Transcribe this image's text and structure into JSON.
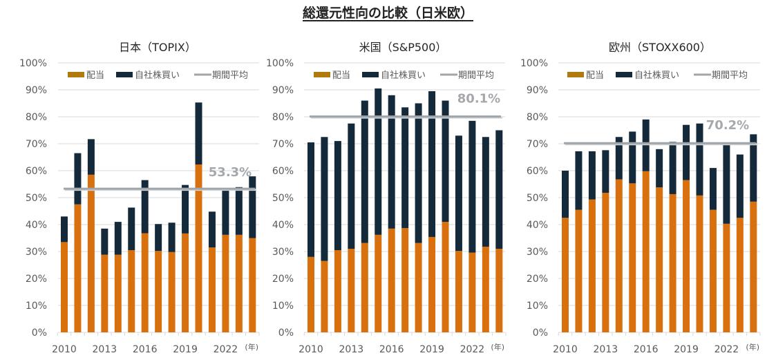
{
  "title": "総還元性向の比較（日米欧）",
  "legend": {
    "dividend": "配当",
    "buyback": "自社株買い",
    "average": "期間平均"
  },
  "colors": {
    "dividend": "#D9700E",
    "buyback": "#14293A",
    "average": "#A0A5AA",
    "grid": "#D9D9D9"
  },
  "chart_data": [
    {
      "type": "bar",
      "stacked": true,
      "title": "日本（TOPIX）",
      "xlabel": "",
      "ylabel": "",
      "x_unit": "(年)",
      "categories": [
        "2010",
        "2011",
        "2012",
        "2013",
        "2014",
        "2015",
        "2016",
        "2017",
        "2018",
        "2019",
        "2020",
        "2021",
        "2022",
        "2023",
        "2024"
      ],
      "x_tick_labels": [
        "2010",
        "2013",
        "2016",
        "2019",
        "2022"
      ],
      "y_tick_labels": [
        "0%",
        "10%",
        "20%",
        "30%",
        "40%",
        "50%",
        "60%",
        "70%",
        "80%",
        "90%",
        "100%"
      ],
      "ylim": [
        0,
        100
      ],
      "grid": true,
      "legend_position": "top",
      "series": [
        {
          "name": "配当",
          "values": [
            33.5,
            47.5,
            58.5,
            28.8,
            28.8,
            30.5,
            36.8,
            30.2,
            29.8,
            36.7,
            62.3,
            31.5,
            36.2,
            36.2,
            35.0
          ]
        },
        {
          "name": "自社株買い",
          "values": [
            9.5,
            19.0,
            13.2,
            9.7,
            12.2,
            15.8,
            19.7,
            10.0,
            10.9,
            18.0,
            23.0,
            13.3,
            16.6,
            17.7,
            22.9
          ]
        }
      ],
      "average": 53.3,
      "average_label": "53.3%"
    },
    {
      "type": "bar",
      "stacked": true,
      "title": "米国（S&P500）",
      "xlabel": "",
      "ylabel": "",
      "x_unit": "(年)",
      "categories": [
        "2010",
        "2011",
        "2012",
        "2013",
        "2014",
        "2015",
        "2016",
        "2017",
        "2018",
        "2019",
        "2020",
        "2021",
        "2022",
        "2023",
        "2024"
      ],
      "x_tick_labels": [
        "2010",
        "2013",
        "2016",
        "2019",
        "2022"
      ],
      "y_tick_labels": [
        "0%",
        "10%",
        "20%",
        "30%",
        "40%",
        "50%",
        "60%",
        "70%",
        "80%",
        "90%",
        "100%"
      ],
      "ylim": [
        0,
        100
      ],
      "grid": true,
      "legend_position": "top",
      "series": [
        {
          "name": "配当",
          "values": [
            28.0,
            26.5,
            30.5,
            31.0,
            33.2,
            36.2,
            38.5,
            38.7,
            33.2,
            35.4,
            41.0,
            30.2,
            29.6,
            31.8,
            31.0
          ]
        },
        {
          "name": "自社株買い",
          "values": [
            42.5,
            46.0,
            40.5,
            46.5,
            52.8,
            54.3,
            49.5,
            44.8,
            51.8,
            54.1,
            45.0,
            42.8,
            48.9,
            40.7,
            44.0
          ]
        }
      ],
      "average": 80.1,
      "average_label": "80.1%"
    },
    {
      "type": "bar",
      "stacked": true,
      "title": "欧州（STOXX600）",
      "xlabel": "",
      "ylabel": "",
      "x_unit": "(年)",
      "categories": [
        "2010",
        "2011",
        "2012",
        "2013",
        "2014",
        "2015",
        "2016",
        "2017",
        "2018",
        "2019",
        "2020",
        "2021",
        "2022",
        "2023",
        "2024"
      ],
      "x_tick_labels": [
        "2010",
        "2013",
        "2016",
        "2019",
        "2022"
      ],
      "y_tick_labels": [
        "0%",
        "10%",
        "20%",
        "30%",
        "40%",
        "50%",
        "60%",
        "70%",
        "80%",
        "90%",
        "100%"
      ],
      "ylim": [
        0,
        100
      ],
      "grid": true,
      "legend_position": "top",
      "series": [
        {
          "name": "配当",
          "values": [
            42.5,
            45.5,
            49.3,
            51.8,
            56.8,
            55.3,
            59.8,
            53.8,
            51.3,
            56.5,
            50.8,
            45.5,
            40.3,
            42.5,
            48.5
          ]
        },
        {
          "name": "自社株買い",
          "values": [
            17.5,
            21.7,
            17.9,
            15.8,
            15.7,
            19.2,
            19.2,
            14.2,
            19.4,
            20.5,
            26.7,
            15.5,
            29.2,
            23.5,
            25.0
          ]
        }
      ],
      "average": 70.2,
      "average_label": "70.2%"
    }
  ]
}
